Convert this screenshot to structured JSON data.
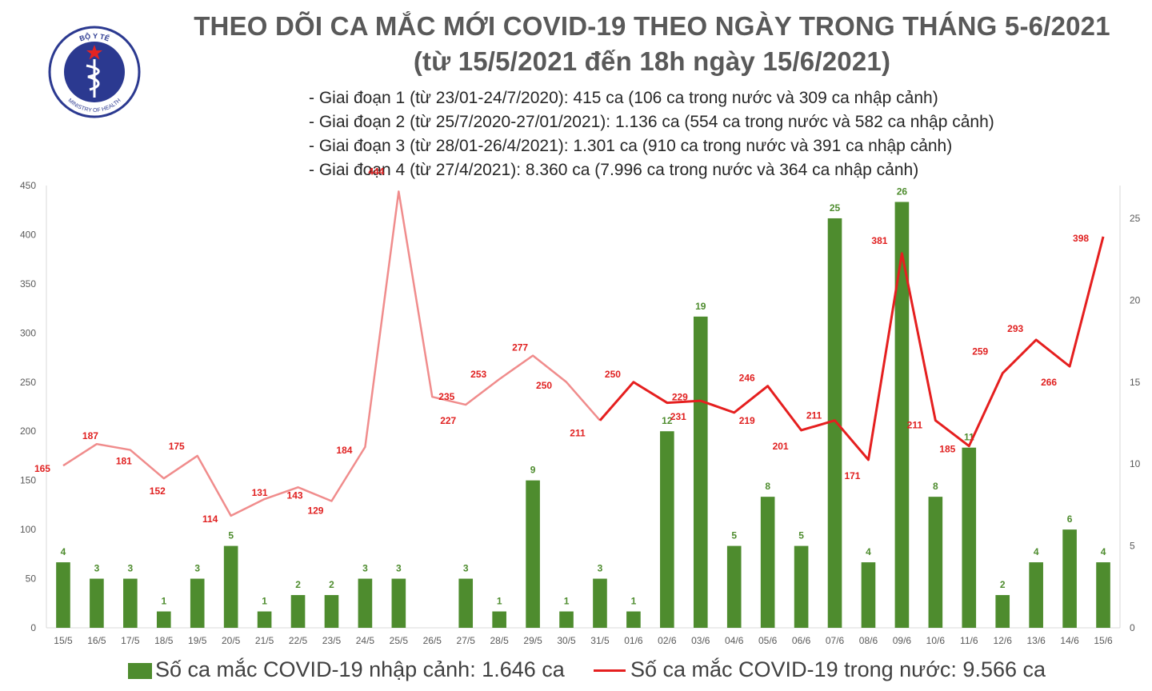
{
  "header": {
    "title_line1": "THEO DÕI CA MẮC MỚI COVID-19 THEO NGÀY TRONG THÁNG 5-6/2021",
    "title_line2": "(từ 15/5/2021 đến 18h ngày 15/6/2021)",
    "phases": [
      "- Giai đoạn 1 (từ 23/01-24/7/2020): 415 ca (106 ca trong nước và 309 ca nhập cảnh)",
      "- Giai đoạn 2 (từ 25/7/2020-27/01/2021): 1.136 ca (554 ca trong nước và 582 ca nhập cảnh)",
      "- Giai đoạn 3 (từ 28/01-26/4/2021): 1.301 ca (910 ca trong nước và 391 ca nhập cảnh)",
      "- Giai đoạn 4 (từ 27/4/2021): 8.360 ca (7.996 ca trong nước và 364 ca nhập cảnh)"
    ]
  },
  "logo": {
    "top_text": "BỘ Y TẾ",
    "bottom_text": "MINISTRY OF HEALTH",
    "icon": "caduceus-icon",
    "color": "#2b3990"
  },
  "legend": {
    "bars_label": "Số ca mắc COVID-19 nhập cảnh: 1.646 ca",
    "line_label": "Số ca mắc COVID-19 trong nước: 9.566 ca"
  },
  "chart_data": {
    "type": "bar+line",
    "categories": [
      "15/5",
      "16/5",
      "17/5",
      "18/5",
      "19/5",
      "20/5",
      "21/5",
      "22/5",
      "23/5",
      "24/5",
      "25/5",
      "26/5",
      "27/5",
      "28/5",
      "29/5",
      "30/5",
      "31/5",
      "01/6",
      "02/6",
      "03/6",
      "04/6",
      "05/6",
      "06/6",
      "07/6",
      "08/6",
      "09/6",
      "10/6",
      "11/6",
      "12/6",
      "13/6",
      "14/6",
      "15/6"
    ],
    "series": [
      {
        "name": "Số ca mắc COVID-19 nhập cảnh: 1.646 ca",
        "type": "bar",
        "axis": "right",
        "color": "#4e8c2e",
        "values": [
          4,
          3,
          3,
          1,
          3,
          5,
          1,
          2,
          2,
          3,
          3,
          0,
          3,
          1,
          9,
          1,
          3,
          1,
          12,
          19,
          5,
          8,
          5,
          25,
          4,
          26,
          8,
          11,
          2,
          4,
          6,
          4
        ],
        "labels": [
          "4",
          "3",
          "3",
          "1",
          "3",
          "5",
          "1",
          "2",
          "2",
          "3",
          "3",
          "",
          "3",
          "1",
          "9",
          "1",
          "3",
          "1",
          "12",
          "19",
          "5",
          "8",
          "5",
          "25",
          "4",
          "26",
          "8",
          "11",
          "2",
          "4",
          "6",
          "4"
        ]
      },
      {
        "name": "Số ca mắc COVID-19 trong nước: 9.566 ca",
        "type": "line",
        "axis": "left",
        "color": "#e51f1f",
        "values": [
          165,
          187,
          181,
          152,
          175,
          114,
          131,
          143,
          129,
          184,
          444,
          235,
          227,
          253,
          277,
          250,
          211,
          250,
          229,
          231,
          219,
          246,
          201,
          211,
          171,
          381,
          211,
          185,
          259,
          293,
          266,
          398
        ]
      }
    ],
    "y_left": {
      "min": 0,
      "max": 450,
      "ticks": [
        0,
        50,
        100,
        150,
        200,
        250,
        300,
        350,
        400,
        450
      ]
    },
    "y_right": {
      "min": 0,
      "max": 27,
      "ticks": [
        0,
        5,
        10,
        15,
        20,
        25
      ]
    },
    "grid": false,
    "legend_position": "bottom"
  }
}
